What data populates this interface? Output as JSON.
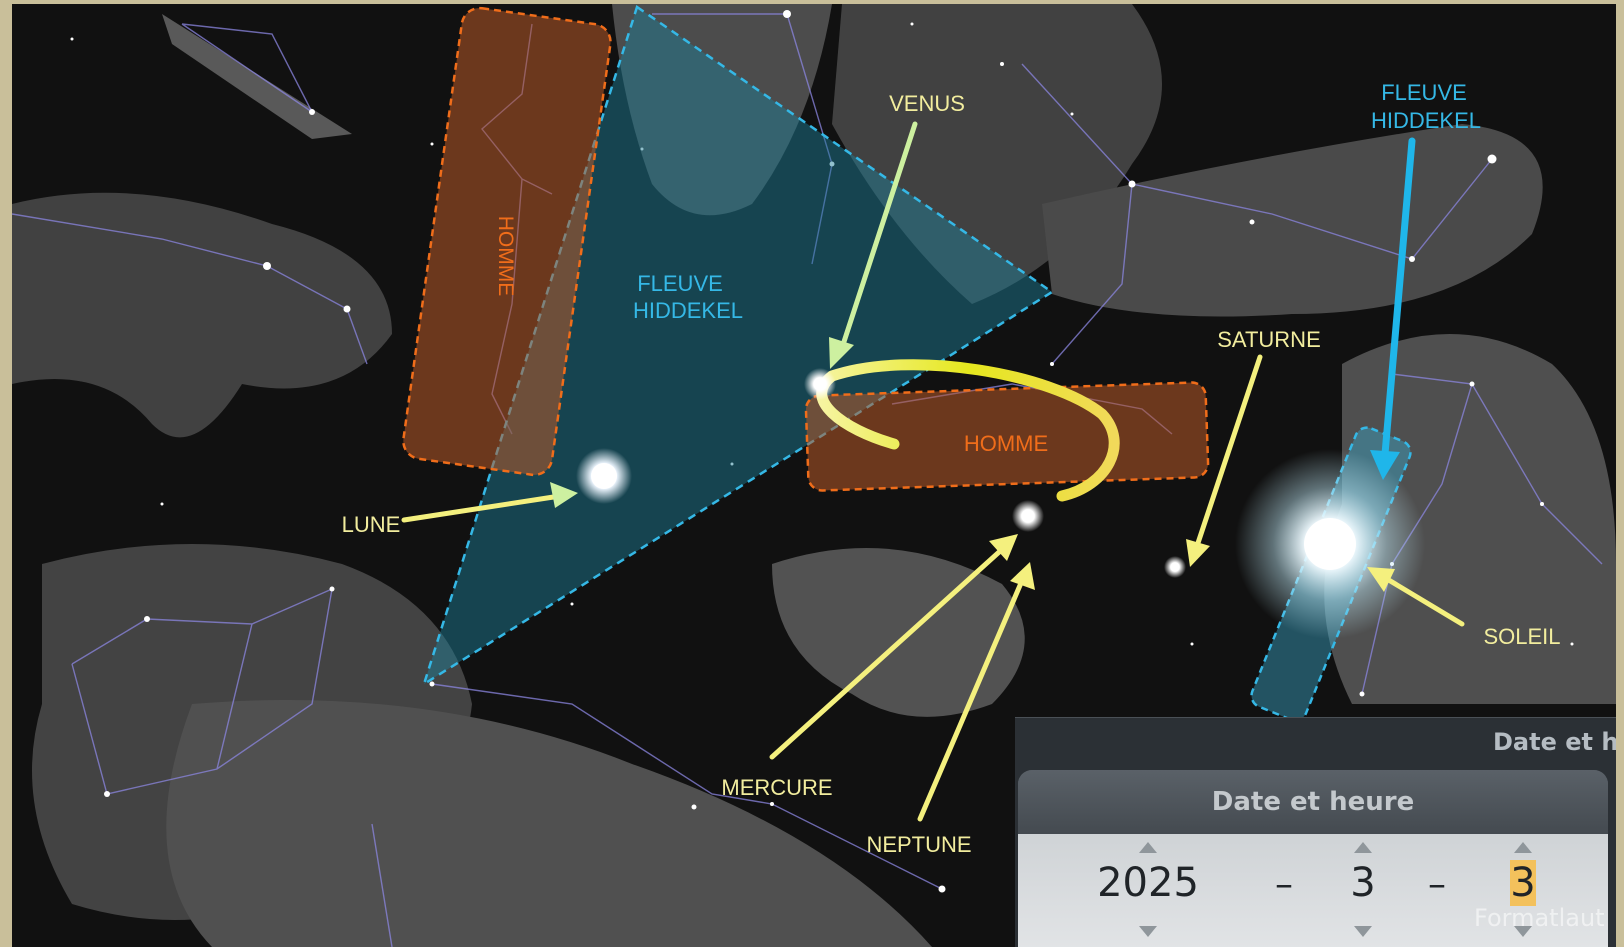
{
  "labels": {
    "fleuve_left": [
      "FLEUVE",
      "HIDDEKEL"
    ],
    "fleuve_right": [
      "FLEUVE",
      "HIDDEKEL"
    ],
    "homme_vertical": "HOMME",
    "homme_horizontal": "HOMME",
    "venus": "VENUS",
    "saturne": "SATURNE",
    "lune": "LUNE",
    "mercure": "MERCURE",
    "neptune": "NEPTUNE",
    "soleil": "SOLEIL"
  },
  "date_window": {
    "title": "Date et heure",
    "panel_title": "Date et heure",
    "year": "2025",
    "month": "3",
    "day": "3",
    "separator": "–",
    "watermark": "Formatlaut"
  },
  "colors": {
    "cyan": "#35b8e6",
    "orange": "#f06d1a",
    "label_yellow": "#f2ed9e",
    "arrow_yellow": "#f4f07e",
    "arrow_green": "#cdf0a0",
    "arc_yellow": "#e8ea2c",
    "constellation": "#8b86e0"
  }
}
